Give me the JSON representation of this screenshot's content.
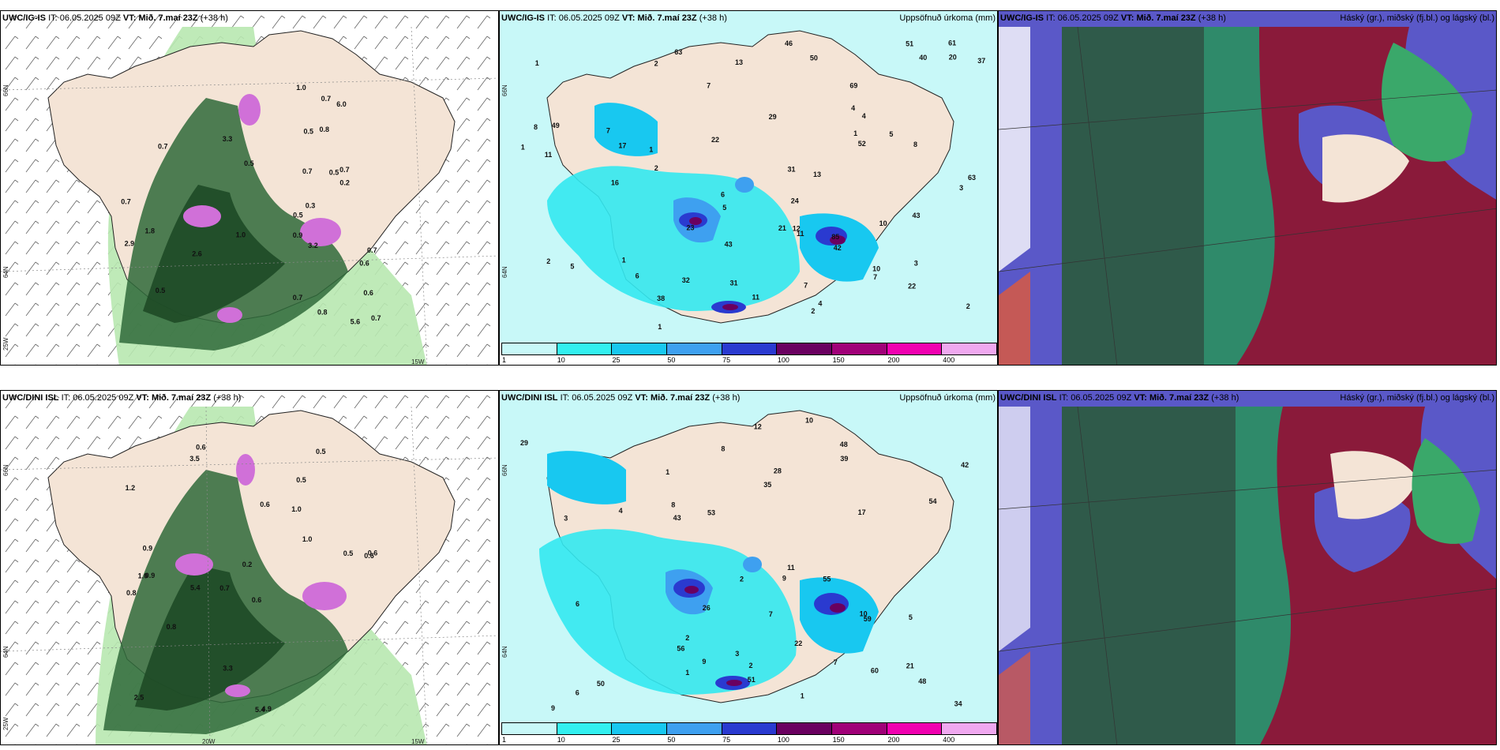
{
  "rows": [
    {
      "model": "UWC/IG-IS",
      "it_label": "IT:",
      "it_value": "06.05.2025 09Z",
      "vt_label": "VT:",
      "vt_value": "Mið. 7.maí 23Z",
      "lead": "(+38 h)",
      "lat_labels": [
        "66N",
        "64N",
        "25W"
      ],
      "lon_labels": [
        "15W"
      ],
      "precip_numbers": [
        "4",
        "2",
        "1",
        "7",
        "5",
        "7",
        "3",
        "2",
        "5",
        "6",
        "5",
        "8",
        "6",
        "12",
        "52",
        "51",
        "11",
        "40",
        "10",
        "8",
        "10",
        "11",
        "38",
        "7",
        "13",
        "4",
        "16",
        "17",
        "11",
        "7",
        "42",
        "61",
        "69",
        "32",
        "63",
        "31",
        "46",
        "49",
        "63",
        "85",
        "13",
        "31",
        "37",
        "3",
        "50",
        "43",
        "21",
        "43",
        "24",
        "20",
        "23",
        "29",
        "1",
        "4",
        "1",
        "2",
        "22",
        "22",
        "1",
        "2",
        "1",
        "2",
        "1"
      ],
      "wind_numbers": [
        "0.9",
        "0.7",
        "0.5",
        "0.6",
        "0.7",
        "0.8",
        "0.7",
        "0.5",
        "0.6",
        "0.8",
        "0.3",
        "0.5",
        "2.9",
        "3.2",
        "2.6",
        "5.6",
        "6.0",
        "1.8",
        "0.7",
        "3.3",
        "1.0",
        "0.7",
        "0.7",
        "1.0",
        "0.2",
        "0.5",
        "0.7",
        "0.5",
        "0.7"
      ]
    },
    {
      "model": "UWC/DINI ISL",
      "it_label": "IT:",
      "it_value": "06.05.2025 09Z",
      "vt_label": "VT:",
      "vt_value": "Mið. 7.maí 23Z",
      "lead": "(+38 h)",
      "lat_labels": [
        "66N",
        "64N",
        "25W"
      ],
      "lon_labels": [
        "20W",
        "15W"
      ],
      "precip_numbers": [
        "6",
        "5",
        "11",
        "7",
        "8",
        "10",
        "21",
        "48",
        "60",
        "56",
        "34",
        "43",
        "9",
        "12",
        "7",
        "8",
        "10",
        "6",
        "2",
        "42",
        "29",
        "50",
        "51",
        "55",
        "59",
        "39",
        "53",
        "35",
        "54",
        "22",
        "48",
        "26",
        "28",
        "9",
        "9",
        "1",
        "2",
        "17",
        "3",
        "3",
        "4",
        "2",
        "1",
        "1"
      ],
      "wind_numbers": [
        "0.6",
        "0.5",
        "0.6",
        "0.7",
        "0.6",
        "0.9",
        "1.2",
        "1.0",
        "0.8",
        "0.6",
        "0.2",
        "2.5",
        "3.5",
        "5.4",
        "5.4",
        "4.9",
        "3.3",
        "0.5",
        "1.0",
        "0.8",
        "0.9",
        "1.0",
        "0.6",
        "0.5"
      ]
    }
  ],
  "precip_panel": {
    "title": "Uppsöfnuð úrkoma (mm)",
    "colorbar_labels": [
      "1",
      "10",
      "25",
      "50",
      "75",
      "100",
      "150",
      "200",
      "400"
    ],
    "colorbar_colors": [
      "#c8f8f8",
      "#33f0f0",
      "#18c8f0",
      "#3ea0f0",
      "#2a3ad0",
      "#6a0060",
      "#a00078",
      "#f000b0",
      "#f0a8f0"
    ]
  },
  "cloud_panel": {
    "title": "Háský (gr.), miðský (fj.bl.) og lágský (bl.)"
  },
  "colors": {
    "land": "#f4e4d6",
    "sea_precip": "#c8f8f8",
    "cloud_green": "#2f5a4a",
    "cloud_maroon": "#8a1a3a",
    "cloud_blue": "#5a58c8"
  }
}
